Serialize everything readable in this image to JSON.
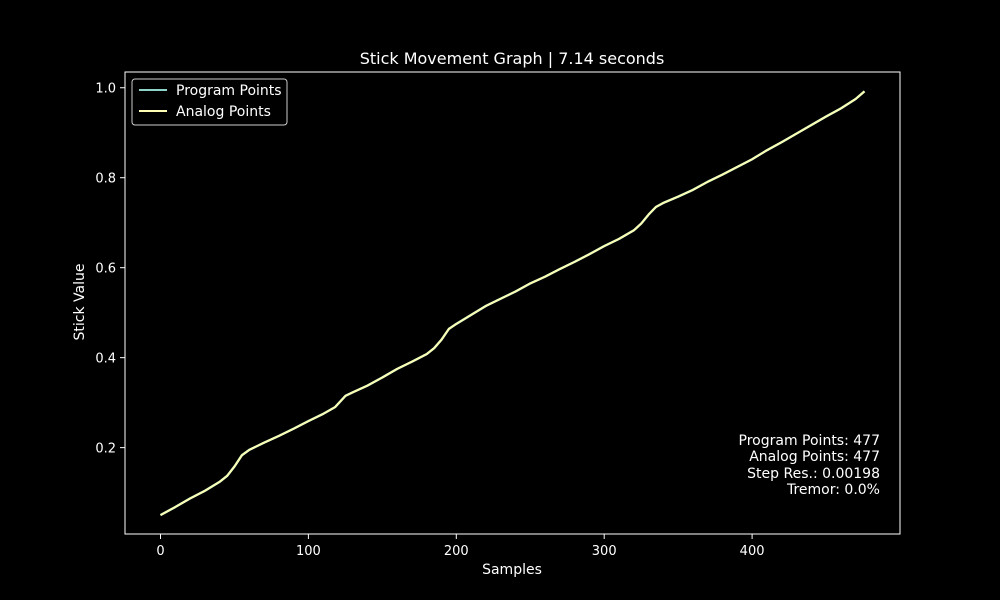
{
  "chart_data": {
    "type": "line",
    "title": "Stick Movement Graph | 7.14 seconds",
    "xlabel": "Samples",
    "ylabel": "Stick Value",
    "xlim": [
      -24,
      500
    ],
    "ylim": [
      0.008,
      1.035
    ],
    "x_ticks": [
      0,
      100,
      200,
      300,
      400
    ],
    "x_tick_labels": [
      "0",
      "100",
      "200",
      "300",
      "400"
    ],
    "y_ticks": [
      0.2,
      0.4,
      0.6,
      0.8,
      1.0
    ],
    "y_tick_labels": [
      "0.2",
      "0.4",
      "0.6",
      "0.8",
      "1.0"
    ],
    "grid": false,
    "legend_position": "top-left",
    "series": [
      {
        "name": "Program Points",
        "color": "#8dd3c7",
        "x": [
          0,
          10,
          20,
          30,
          40,
          45,
          50,
          55,
          60,
          70,
          80,
          90,
          100,
          110,
          118,
          125,
          130,
          140,
          150,
          160,
          170,
          180,
          185,
          190,
          195,
          200,
          210,
          220,
          230,
          240,
          250,
          260,
          270,
          280,
          290,
          300,
          310,
          320,
          325,
          330,
          335,
          340,
          350,
          360,
          370,
          380,
          390,
          400,
          410,
          420,
          430,
          440,
          450,
          460,
          470,
          476
        ],
        "values": [
          0.05,
          0.068,
          0.087,
          0.104,
          0.124,
          0.137,
          0.158,
          0.183,
          0.195,
          0.211,
          0.226,
          0.242,
          0.259,
          0.275,
          0.29,
          0.315,
          0.323,
          0.338,
          0.356,
          0.375,
          0.391,
          0.408,
          0.421,
          0.44,
          0.464,
          0.475,
          0.495,
          0.515,
          0.531,
          0.547,
          0.565,
          0.58,
          0.597,
          0.613,
          0.63,
          0.648,
          0.664,
          0.683,
          0.698,
          0.718,
          0.735,
          0.744,
          0.758,
          0.773,
          0.791,
          0.807,
          0.824,
          0.841,
          0.861,
          0.879,
          0.898,
          0.917,
          0.936,
          0.954,
          0.975,
          0.992
        ]
      },
      {
        "name": "Analog Points",
        "color": "#ffffb3",
        "x": [
          0,
          10,
          20,
          30,
          40,
          45,
          50,
          55,
          60,
          70,
          80,
          90,
          100,
          110,
          118,
          125,
          130,
          140,
          150,
          160,
          170,
          180,
          185,
          190,
          195,
          200,
          210,
          220,
          230,
          240,
          250,
          260,
          270,
          280,
          290,
          300,
          310,
          320,
          325,
          330,
          335,
          340,
          350,
          360,
          370,
          380,
          390,
          400,
          410,
          420,
          430,
          440,
          450,
          460,
          470,
          476
        ],
        "values": [
          0.05,
          0.068,
          0.087,
          0.104,
          0.124,
          0.137,
          0.158,
          0.183,
          0.195,
          0.211,
          0.226,
          0.242,
          0.259,
          0.275,
          0.29,
          0.315,
          0.323,
          0.338,
          0.356,
          0.375,
          0.391,
          0.408,
          0.421,
          0.44,
          0.464,
          0.475,
          0.495,
          0.515,
          0.531,
          0.547,
          0.565,
          0.58,
          0.597,
          0.613,
          0.63,
          0.648,
          0.664,
          0.683,
          0.698,
          0.718,
          0.735,
          0.744,
          0.758,
          0.773,
          0.791,
          0.807,
          0.824,
          0.841,
          0.861,
          0.879,
          0.898,
          0.917,
          0.936,
          0.954,
          0.975,
          0.992
        ]
      }
    ],
    "annotations": [
      "Program Points: 477",
      "Analog Points: 477",
      "Step Res.: 0.00198",
      "Tremor: 0.0%"
    ],
    "colors": {
      "background": "#000000",
      "axes": "#ffffff",
      "text": "#ffffff"
    }
  }
}
